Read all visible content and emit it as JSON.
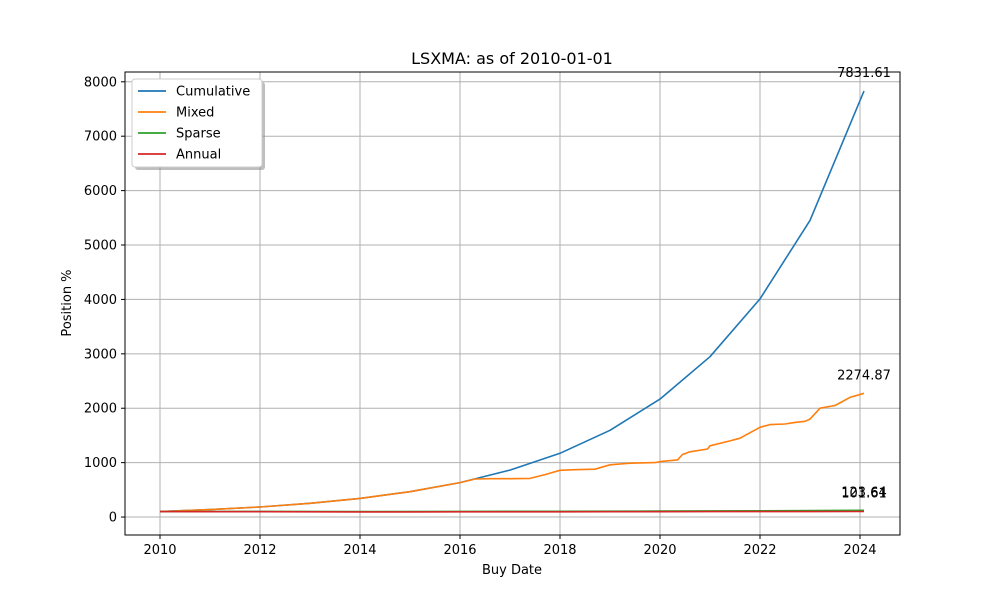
{
  "chart_data": {
    "type": "line",
    "title": "LSXMA: as of 2010-01-01",
    "xlabel": "Buy Date",
    "ylabel": "Position %",
    "xlim": [
      2009.3,
      2024.8
    ],
    "ylim": [
      -330,
      8180
    ],
    "x_ticks": [
      2010,
      2012,
      2014,
      2016,
      2018,
      2020,
      2022,
      2024
    ],
    "x_tick_labels": [
      "2010",
      "2012",
      "2014",
      "2016",
      "2018",
      "2020",
      "2022",
      "2024"
    ],
    "y_ticks": [
      0,
      1000,
      2000,
      3000,
      4000,
      5000,
      6000,
      7000,
      8000
    ],
    "y_tick_labels": [
      "0",
      "1000",
      "2000",
      "3000",
      "4000",
      "5000",
      "6000",
      "7000",
      "8000"
    ],
    "grid": true,
    "legend_position": "upper-left",
    "series": [
      {
        "name": "Cumulative",
        "color": "#1f77b4",
        "x": [
          2010,
          2011,
          2012,
          2013,
          2014,
          2015,
          2016,
          2017,
          2018,
          2019,
          2020,
          2021,
          2022,
          2023,
          2024.08
        ],
        "y": [
          100,
          136,
          185,
          252,
          343,
          466,
          634,
          862,
          1172,
          1594,
          2168,
          2948,
          4010,
          5453,
          7831.61
        ],
        "end_label": "7831.61"
      },
      {
        "name": "Mixed",
        "color": "#ff7f0e",
        "x": [
          2010,
          2011,
          2012,
          2013,
          2014,
          2015,
          2016,
          2016.3,
          2016.6,
          2017,
          2017.4,
          2017.7,
          2018,
          2018.3,
          2018.7,
          2019,
          2019.4,
          2019.9,
          2020,
          2020.35,
          2020.45,
          2020.6,
          2020.95,
          2021.0,
          2021.4,
          2021.6,
          2022,
          2022.2,
          2022.5,
          2022.7,
          2022.9,
          2023.0,
          2023.1,
          2023.2,
          2023.5,
          2023.8,
          2024.08
        ],
        "y": [
          100,
          136,
          185,
          252,
          343,
          466,
          634,
          700,
          705,
          705,
          710,
          780,
          860,
          870,
          880,
          960,
          990,
          1000,
          1020,
          1050,
          1150,
          1200,
          1250,
          1310,
          1400,
          1450,
          1650,
          1700,
          1710,
          1740,
          1760,
          1800,
          1900,
          2000,
          2050,
          2200,
          2274.87
        ],
        "end_label": "2274.87"
      },
      {
        "name": "Sparse",
        "color": "#2ca02c",
        "x": [
          2010,
          2012,
          2014,
          2016,
          2018,
          2020,
          2022,
          2024.08
        ],
        "y": [
          100,
          103,
          100,
          104,
          106,
          109,
          115,
          123.64
        ],
        "end_label": "123.64"
      },
      {
        "name": "Annual",
        "color": "#d62728",
        "x": [
          2010,
          2011,
          2012,
          2013,
          2014,
          2015,
          2016,
          2017,
          2018,
          2019,
          2020,
          2021,
          2022,
          2023,
          2024.08
        ],
        "y": [
          100,
          99,
          98,
          97,
          95,
          95,
          96,
          97,
          97,
          98,
          99,
          100,
          100,
          101,
          101.61
        ],
        "end_label": "101.61"
      }
    ]
  }
}
